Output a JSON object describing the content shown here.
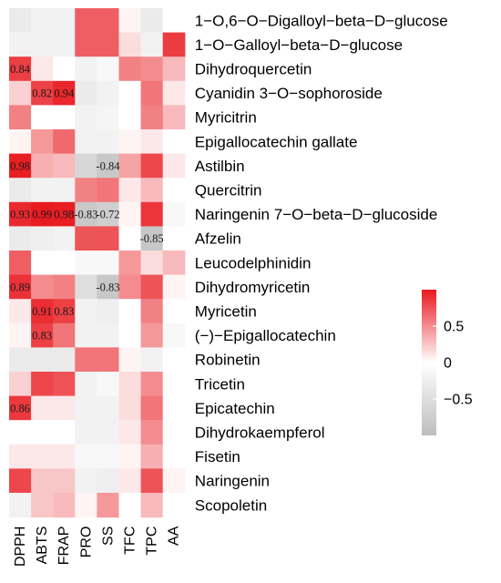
{
  "chart_data": {
    "type": "heatmap",
    "rows": [
      "1−O,6−O−Digalloyl−beta−D−glucose",
      "1−O−Galloyl−beta−D−glucose",
      "Dihydroquercetin",
      "Cyanidin 3−O−sophoroside",
      "Myricitrin",
      "Epigallocatechin gallate",
      "Astilbin",
      "Quercitrin",
      "Naringenin 7−O−beta−D−glucoside",
      "Afzelin",
      "Leucodelphinidin",
      "Dihydromyricetin",
      "Myricetin",
      "(−)−Epigallocatechin",
      "Robinetin",
      "Tricetin",
      "Epicatechin",
      "Dihydrokaempferol",
      "Fisetin",
      "Naringenin",
      "Scopoletin"
    ],
    "columns": [
      "DPPH",
      "ABTS",
      "FRAP",
      "PRO",
      "SS",
      "TFC",
      "TPC",
      "AA"
    ],
    "values": [
      [
        -0.3,
        -0.2,
        -0.2,
        0.7,
        0.7,
        0.05,
        -0.3,
        0.0
      ],
      [
        -0.2,
        -0.2,
        -0.2,
        0.7,
        0.7,
        0.15,
        -0.2,
        0.85
      ],
      [
        0.84,
        0.1,
        0.0,
        -0.2,
        -0.1,
        0.55,
        0.5,
        0.3
      ],
      [
        0.2,
        0.82,
        0.94,
        -0.3,
        -0.2,
        0.0,
        0.6,
        0.1
      ],
      [
        0.55,
        0.0,
        0.0,
        -0.2,
        -0.15,
        0.0,
        0.55,
        0.3
      ],
      [
        0.05,
        0.45,
        0.65,
        -0.2,
        -0.2,
        0.05,
        0.1,
        0.0
      ],
      [
        0.98,
        0.35,
        0.3,
        -0.6,
        -0.84,
        0.4,
        0.8,
        0.1
      ],
      [
        -0.3,
        -0.2,
        -0.2,
        0.55,
        0.6,
        0.1,
        0.3,
        0.0
      ],
      [
        0.93,
        0.99,
        0.98,
        -0.83,
        -0.72,
        0.05,
        0.88,
        -0.1
      ],
      [
        -0.3,
        -0.25,
        -0.2,
        0.75,
        0.75,
        0.0,
        -0.85,
        0.0
      ],
      [
        0.7,
        0.0,
        0.0,
        -0.1,
        -0.1,
        0.45,
        0.15,
        0.3
      ],
      [
        0.89,
        0.5,
        0.55,
        -0.5,
        -0.83,
        0.5,
        0.75,
        0.05
      ],
      [
        0.1,
        0.91,
        0.83,
        -0.2,
        -0.25,
        0.0,
        0.55,
        0.0
      ],
      [
        0.05,
        0.83,
        0.6,
        -0.2,
        -0.2,
        0.0,
        0.45,
        -0.1
      ],
      [
        -0.3,
        -0.3,
        -0.3,
        0.6,
        0.6,
        0.05,
        -0.2,
        0.0
      ],
      [
        0.2,
        0.8,
        0.75,
        -0.2,
        -0.1,
        0.15,
        0.5,
        0.0
      ],
      [
        0.86,
        0.1,
        0.1,
        -0.2,
        -0.2,
        0.15,
        0.6,
        0.0
      ],
      [
        0.0,
        0.0,
        0.0,
        -0.2,
        -0.2,
        0.1,
        0.5,
        0.0
      ],
      [
        0.1,
        0.1,
        0.1,
        -0.1,
        -0.1,
        0.05,
        0.35,
        0.0
      ],
      [
        0.8,
        0.25,
        0.25,
        -0.2,
        -0.25,
        0.1,
        0.75,
        0.05
      ],
      [
        -0.2,
        0.25,
        0.3,
        0.05,
        0.45,
        0.0,
        0.3,
        0.0
      ]
    ],
    "annotations": [
      {
        "row": 2,
        "col": 0,
        "text": "0.84"
      },
      {
        "row": 3,
        "col": 1,
        "text": "0.82"
      },
      {
        "row": 3,
        "col": 2,
        "text": "0.94"
      },
      {
        "row": 6,
        "col": 0,
        "text": "0.98"
      },
      {
        "row": 6,
        "col": 4,
        "text": "-0.84"
      },
      {
        "row": 8,
        "col": 0,
        "text": "0.93"
      },
      {
        "row": 8,
        "col": 1,
        "text": "0.99"
      },
      {
        "row": 8,
        "col": 2,
        "text": "0.98"
      },
      {
        "row": 8,
        "col": 3,
        "text": "-0.83"
      },
      {
        "row": 8,
        "col": 4,
        "text": "-0.72"
      },
      {
        "row": 9,
        "col": 6,
        "text": "-0.85"
      },
      {
        "row": 11,
        "col": 0,
        "text": "0.89"
      },
      {
        "row": 11,
        "col": 4,
        "text": "-0.83"
      },
      {
        "row": 12,
        "col": 1,
        "text": "0.91"
      },
      {
        "row": 12,
        "col": 2,
        "text": "0.83"
      },
      {
        "row": 13,
        "col": 1,
        "text": "0.83"
      },
      {
        "row": 16,
        "col": 0,
        "text": "0.86"
      }
    ],
    "colorbar": {
      "ticks": [
        {
          "value": 0.5,
          "label": "0.5"
        },
        {
          "value": 0.0,
          "label": "0"
        },
        {
          "value": -0.5,
          "label": "−0.5"
        }
      ],
      "range": [
        -1,
        1
      ],
      "low_color": "#bdbdbd",
      "mid_color": "#ffffff",
      "high_color": "#e8191f"
    }
  }
}
